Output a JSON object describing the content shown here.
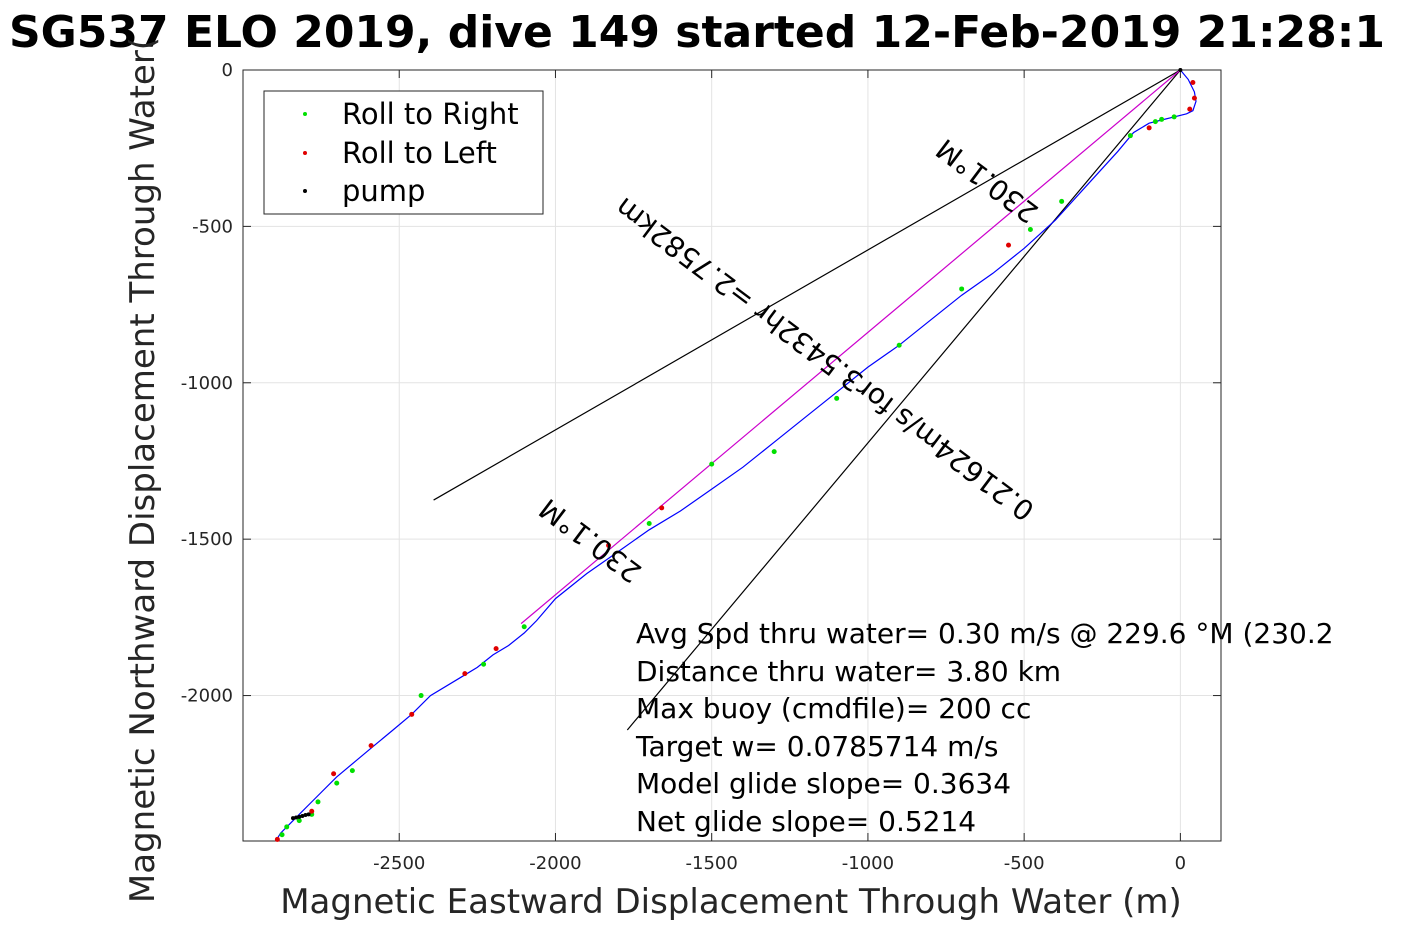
{
  "chart_data": {
    "type": "scatter",
    "title": "SG537 ELO 2019, dive 149 started 12-Feb-2019 21:28:1",
    "xlabel": "Magnetic Eastward Displacement Through Water (m)",
    "ylabel": "Magnetic Northward Displacement Through Water(",
    "xlim": [
      -3000,
      130
    ],
    "ylim": [
      -2465,
      0
    ],
    "x_ticks": [
      -2500,
      -2000,
      -1500,
      -1000,
      -500,
      0
    ],
    "y_ticks": [
      0,
      -500,
      -1000,
      -1500,
      -2000
    ],
    "grid": true,
    "legend_position": "top-left",
    "legend": [
      {
        "label": "Roll to Right",
        "color": "#00e000"
      },
      {
        "label": "Roll to Left",
        "color": "#e00000"
      },
      {
        "label": "pump",
        "color": "#000000"
      }
    ],
    "track": {
      "name": "track through water",
      "color": "#0000ff",
      "x": [
        0,
        25,
        45,
        50,
        40,
        20,
        -20,
        -60,
        -100,
        -150,
        -200,
        -300,
        -400,
        -500,
        -600,
        -700,
        -800,
        -900,
        -1000,
        -1100,
        -1200,
        -1300,
        -1400,
        -1500,
        -1600,
        -1700,
        -1800,
        -1900,
        -2000,
        -2060,
        -2100,
        -2150,
        -2200,
        -2250,
        -2300,
        -2400,
        -2460,
        -2520,
        -2580,
        -2640,
        -2700,
        -2750,
        -2790,
        -2820,
        -2850,
        -2880,
        -2895
      ],
      "y": [
        0,
        -30,
        -70,
        -100,
        -130,
        -140,
        -150,
        -160,
        -170,
        -200,
        -260,
        -370,
        -480,
        -570,
        -650,
        -720,
        -800,
        -880,
        -950,
        -1030,
        -1110,
        -1190,
        -1270,
        -1340,
        -1410,
        -1470,
        -1540,
        -1610,
        -1690,
        -1760,
        -1800,
        -1840,
        -1870,
        -1910,
        -1940,
        -2000,
        -2060,
        -2110,
        -2160,
        -2210,
        -2260,
        -2310,
        -2350,
        -2380,
        -2410,
        -2440,
        -2465
      ]
    },
    "heading_line": {
      "color": "#cc00cc",
      "x": [
        0,
        -2110
      ],
      "y": [
        0,
        -1770
      ]
    },
    "cone_lines": [
      {
        "color": "#000000",
        "x": [
          0,
          -2390
        ],
        "y": [
          0,
          -1375
        ]
      },
      {
        "color": "#000000",
        "x": [
          0,
          -1770
        ],
        "y": [
          0,
          -2110
        ]
      }
    ],
    "roll_right": {
      "color": "#00e000",
      "x": [
        -20,
        -60,
        -80,
        -160,
        -380,
        -480,
        -700,
        -900,
        -1100,
        -1300,
        -1500,
        -1700,
        -2100,
        -2230,
        -2430,
        -2650,
        -2700,
        -2760,
        -2780,
        -2820,
        -2860,
        -2875
      ],
      "y": [
        -150,
        -158,
        -165,
        -210,
        -420,
        -510,
        -700,
        -880,
        -1050,
        -1220,
        -1260,
        -1450,
        -1780,
        -1900,
        -2000,
        -2240,
        -2280,
        -2340,
        -2380,
        -2400,
        -2420,
        -2445
      ]
    },
    "roll_left": {
      "color": "#e00000",
      "x": [
        40,
        45,
        30,
        -100,
        -550,
        -1660,
        -1830,
        -2190,
        -2290,
        -2460,
        -2590,
        -2710,
        -2780,
        -2890
      ],
      "y": [
        -40,
        -90,
        -125,
        -185,
        -560,
        -1400,
        -1520,
        -1850,
        -1930,
        -2060,
        -2160,
        -2250,
        -2370,
        -2460
      ]
    },
    "pump": {
      "color": "#000000",
      "x": [
        0,
        -2790,
        -2800,
        -2810,
        -2820,
        -2830,
        -2840
      ],
      "y": [
        0,
        -2380,
        -2382,
        -2385,
        -2388,
        -2390,
        -2392
      ]
    },
    "rotated_annotations": [
      {
        "text": "230.1°M",
        "x": -600,
        "y": -330,
        "angle": 217
      },
      {
        "text": "0.21624m/s for3.5432hr =2.7582km",
        "x": -1120,
        "y": -900,
        "angle": 217
      },
      {
        "text": "230.1°M",
        "x": -1870,
        "y": -1480,
        "angle": 217
      }
    ],
    "annotations": [
      "Avg Spd thru water=  0.30 m/s @ 229.6 °M (230.2",
      "Distance thru water=  3.80 km",
      "Max buoy (cmdfile)= 200 cc",
      "Target w= 0.0785714 m/s",
      "Model glide slope= 0.3634",
      "Net glide slope= 0.5214"
    ]
  }
}
